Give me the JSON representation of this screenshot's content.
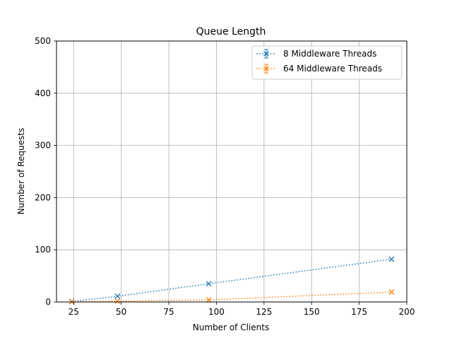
{
  "chart_data": {
    "type": "line",
    "title": "Queue Length",
    "xlabel": "Number of Clients",
    "ylabel": "Number of Requests",
    "xlim": [
      16,
      200
    ],
    "ylim": [
      0,
      500
    ],
    "xticks": [
      25,
      50,
      75,
      100,
      125,
      150,
      175,
      200
    ],
    "yticks": [
      0,
      100,
      200,
      300,
      400,
      500
    ],
    "grid": true,
    "legend_position": "top-right",
    "series": [
      {
        "name": "8 Middleware Threads",
        "color": "#1f77b4",
        "marker": "x",
        "line_style": "dotted",
        "x": [
          24,
          48,
          96,
          192
        ],
        "y": [
          1,
          11,
          35,
          82
        ]
      },
      {
        "name": "64 Middleware Threads",
        "color": "#ff7f0e",
        "marker": "x",
        "line_style": "dotted",
        "x": [
          24,
          48,
          96,
          192
        ],
        "y": [
          0.5,
          1.5,
          4,
          19
        ]
      }
    ]
  }
}
